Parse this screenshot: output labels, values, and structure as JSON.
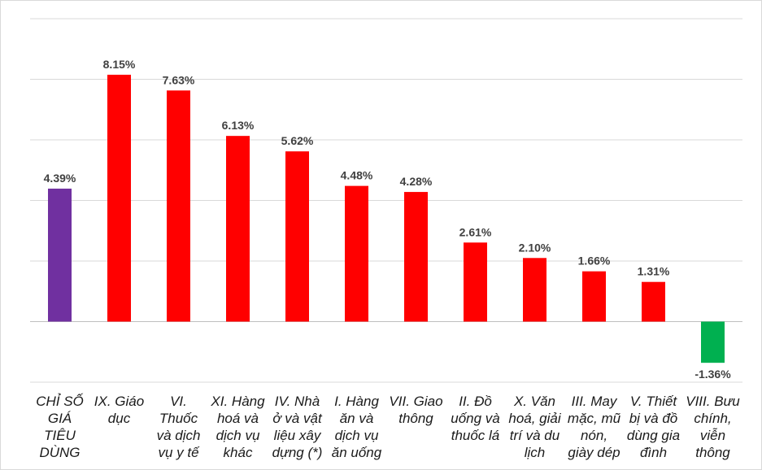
{
  "chart_data": {
    "type": "bar",
    "categories": [
      [
        "CHỈ SỐ",
        "GIÁ",
        "TIÊU",
        "DÙNG"
      ],
      [
        "IX. Giáo",
        "dục"
      ],
      [
        "VI.",
        "Thuốc",
        "và dịch",
        "vụ y tế"
      ],
      [
        "XI. Hàng",
        "hoá và",
        "dịch vụ",
        "khác"
      ],
      [
        "IV. Nhà",
        "ở và vật",
        "liệu xây",
        "dựng (*)"
      ],
      [
        "I. Hàng",
        "ăn và",
        "dịch vụ",
        "ăn uống"
      ],
      [
        "VII. Giao",
        "thông"
      ],
      [
        "II. Đồ",
        "uống và",
        "thuốc lá"
      ],
      [
        "X. Văn",
        "hoá, giải",
        "trí và du",
        "lịch"
      ],
      [
        "III. May",
        "mặc, mũ",
        "nón,",
        "giày dép"
      ],
      [
        "V. Thiết",
        "bị và đồ",
        "dùng gia",
        "đình"
      ],
      [
        "VIII. Bưu",
        "chính,",
        "viễn",
        "thông"
      ]
    ],
    "values": [
      4.39,
      8.15,
      7.63,
      6.13,
      5.62,
      4.48,
      4.28,
      2.61,
      2.1,
      1.66,
      1.31,
      -1.36
    ],
    "labels": [
      "4.39%",
      "8.15%",
      "7.63%",
      "6.13%",
      "5.62%",
      "4.48%",
      "4.28%",
      "2.61%",
      "2.10%",
      "1.66%",
      "1.31%",
      "-1.36%"
    ],
    "colors": [
      "#7030a0",
      "#ff0000",
      "#ff0000",
      "#ff0000",
      "#ff0000",
      "#ff0000",
      "#ff0000",
      "#ff0000",
      "#ff0000",
      "#ff0000",
      "#ff0000",
      "#00b050"
    ],
    "ylim": [
      -2,
      10
    ],
    "gridlines": [
      -2,
      0,
      2,
      4,
      6,
      8,
      10
    ],
    "grid": true,
    "legend": "none",
    "title": "",
    "xlabel": "",
    "ylabel": ""
  }
}
